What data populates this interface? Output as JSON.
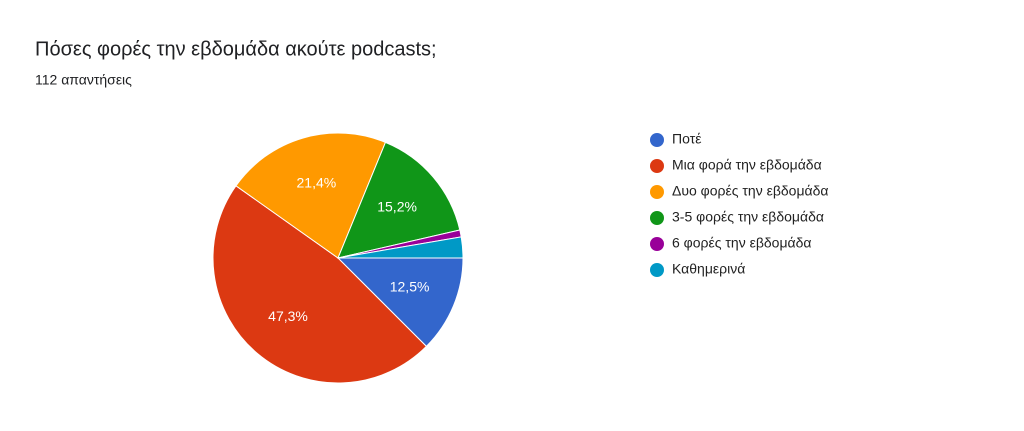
{
  "chart_data": {
    "type": "pie",
    "title": "Πόσες φορές την εβδομάδα ακούτε podcasts;",
    "subtitle": "112 απαντήσεις",
    "categories": [
      "Ποτέ",
      "Μια φορά την εβδομάδα",
      "Δυο φορές την εβδομάδα",
      "3-5 φορές την εβδομάδα",
      "6 φορές την εβδομάδα",
      "Καθημερινά"
    ],
    "values": [
      12.5,
      47.3,
      21.4,
      15.2,
      0.9,
      2.7
    ],
    "value_labels": [
      "12,5%",
      "47,3%",
      "21,4%",
      "15,2%",
      null,
      null
    ],
    "colors": [
      "#3366cc",
      "#dc3912",
      "#ff9900",
      "#109618",
      "#990099",
      "#0099c6"
    ]
  }
}
